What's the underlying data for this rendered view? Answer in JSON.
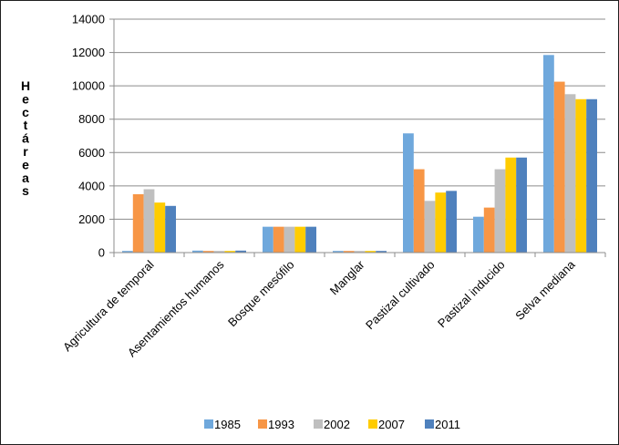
{
  "chart_data": {
    "type": "bar",
    "ylabel": "Hectáreas",
    "ylabel_glyphs": [
      "H",
      "e",
      "c",
      "t",
      "á",
      "r",
      "e",
      "a",
      "s"
    ],
    "ylim": [
      0,
      14000
    ],
    "yticks": [
      0,
      2000,
      4000,
      6000,
      8000,
      10000,
      12000,
      14000
    ],
    "grid": true,
    "legend_position": "bottom",
    "categories": [
      "Agricultura de temporal",
      "Asentamientos humanos",
      "Bosque mesófilo",
      "Manglar",
      "Pastizal cultivado",
      "Pastizal inducido",
      "Selva mediana"
    ],
    "series": [
      {
        "name": "1985",
        "color": "#6fa8dc",
        "values": [
          100,
          120,
          1550,
          100,
          7150,
          2150,
          11850
        ]
      },
      {
        "name": "1993",
        "color": "#f79646",
        "values": [
          3500,
          100,
          1550,
          100,
          5000,
          2700,
          10250
        ]
      },
      {
        "name": "2002",
        "color": "#bfbfbf",
        "values": [
          3800,
          100,
          1550,
          100,
          3100,
          5000,
          9500
        ]
      },
      {
        "name": "2007",
        "color": "#ffcc00",
        "values": [
          3000,
          100,
          1550,
          100,
          3600,
          5700,
          9200
        ]
      },
      {
        "name": "2011",
        "color": "#4f81bd",
        "values": [
          2800,
          120,
          1550,
          100,
          3700,
          5700,
          9200
        ]
      }
    ]
  }
}
